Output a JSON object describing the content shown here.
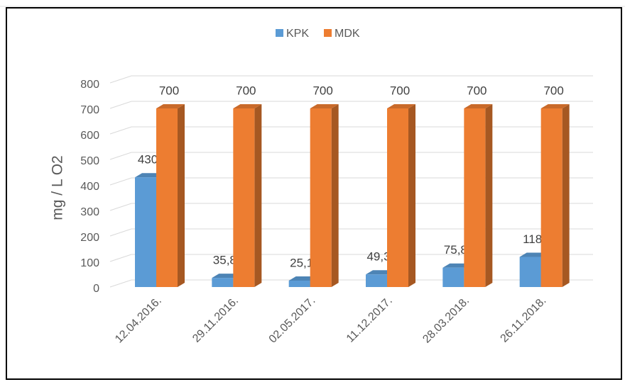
{
  "chart_data": {
    "type": "bar3d",
    "y_label": "mg / L O2",
    "categories": [
      "12.04.2016.",
      "29.11.2016.",
      "02.05.2017.",
      "11.12.2017.",
      "28.03.2018.",
      "26.11.2018."
    ],
    "series": [
      {
        "name": "KPK",
        "color": "#5b9bd5",
        "values": [
          430,
          35.8,
          25.1,
          49.3,
          75.8,
          118
        ],
        "value_labels": [
          "430",
          "35,8",
          "25,1",
          "49,3",
          "75,8",
          "118"
        ]
      },
      {
        "name": "MDK",
        "color": "#ed7d31",
        "values": [
          700,
          700,
          700,
          700,
          700,
          700
        ]
      }
    ],
    "ylim": [
      0,
      800
    ],
    "yticks": [
      0,
      100,
      200,
      300,
      400,
      500,
      600,
      700,
      800
    ],
    "grid": true,
    "legend": "top"
  }
}
